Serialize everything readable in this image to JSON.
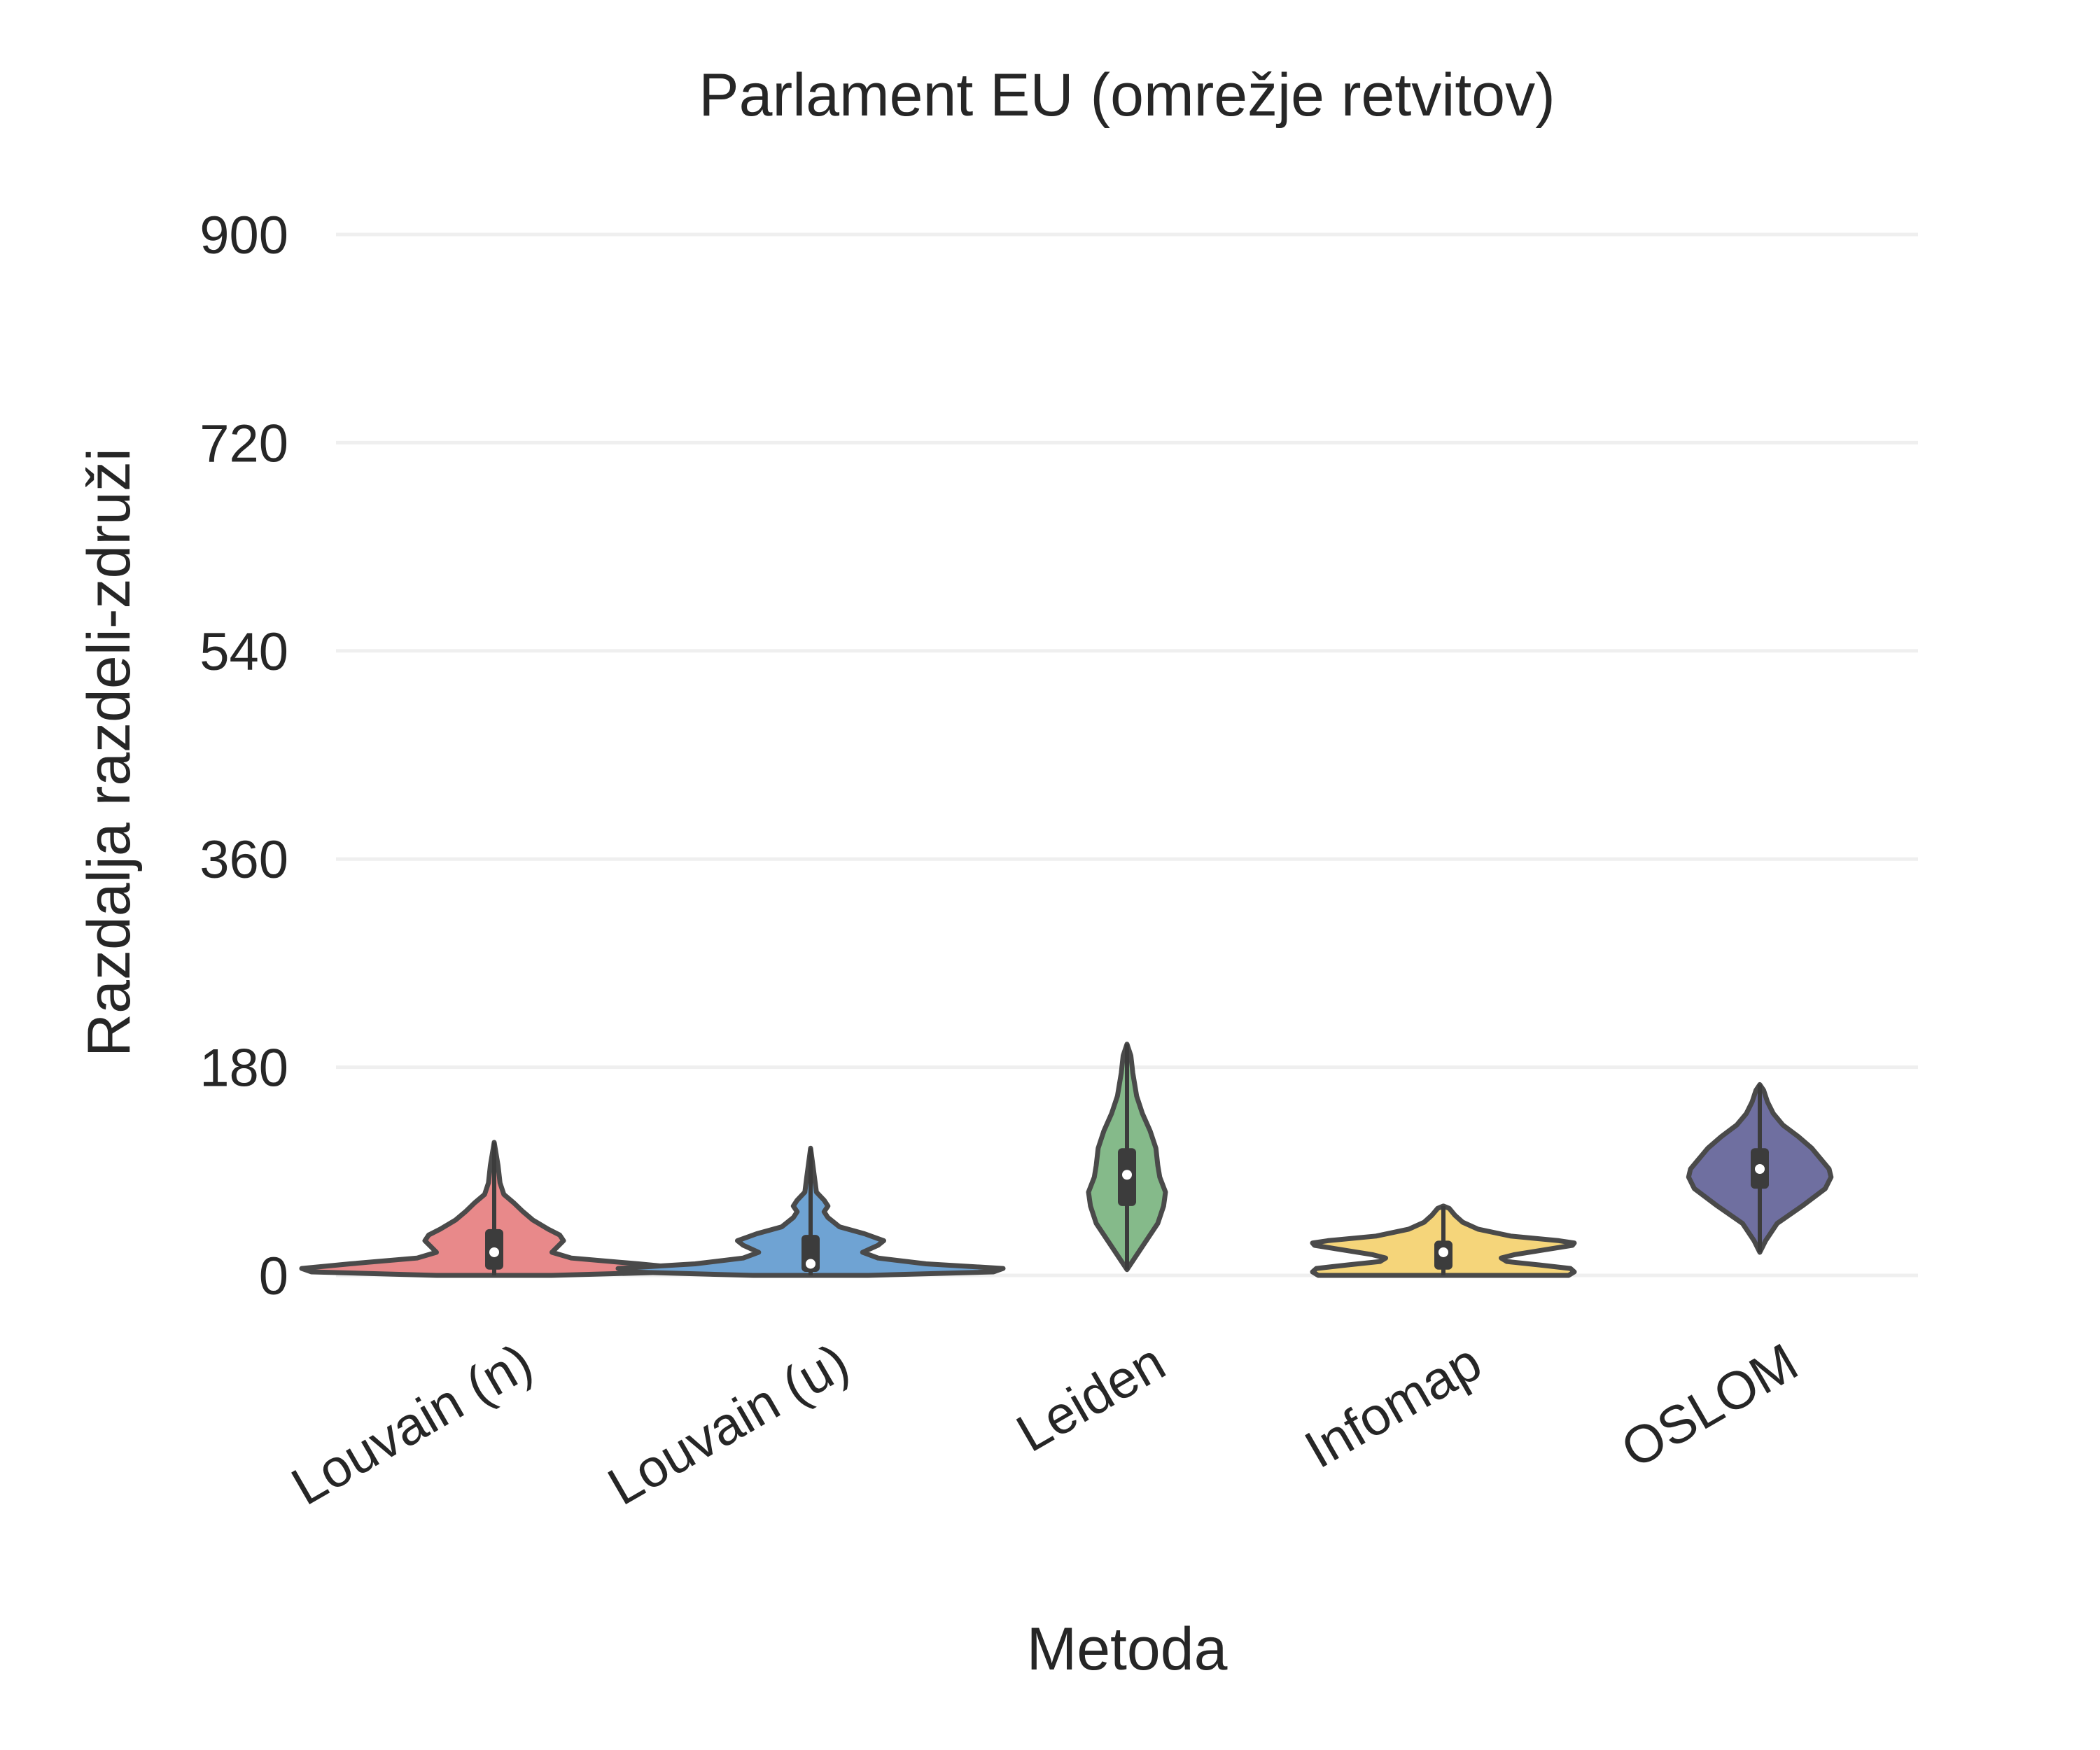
{
  "chart_data": {
    "type": "violin",
    "title": "Parlament EU  (omrežje retvitov)",
    "xlabel": "Metoda",
    "ylabel": "Razdalja razdeli-združi",
    "ylim": [
      -40,
      900
    ],
    "yticks": [
      0,
      180,
      360,
      540,
      720,
      900
    ],
    "grid": true,
    "categories": [
      "Louvain (n)",
      "Louvain (u)",
      "Leiden",
      "Infomap",
      "OSLOM"
    ],
    "colors": [
      "#e8898a",
      "#6fa3d3",
      "#85ba8a",
      "#f5d57a",
      "#6f6fa0"
    ],
    "series": [
      {
        "min": 0,
        "max": 115,
        "q1": 5,
        "median": 20,
        "q3": 40,
        "density": [
          [
            0,
            0.3
          ],
          [
            3,
            0.95
          ],
          [
            6,
            1.0
          ],
          [
            10,
            0.75
          ],
          [
            15,
            0.4
          ],
          [
            20,
            0.3
          ],
          [
            25,
            0.33
          ],
          [
            30,
            0.36
          ],
          [
            35,
            0.34
          ],
          [
            40,
            0.28
          ],
          [
            48,
            0.2
          ],
          [
            55,
            0.15
          ],
          [
            63,
            0.1
          ],
          [
            70,
            0.05
          ],
          [
            80,
            0.03
          ],
          [
            95,
            0.02
          ],
          [
            115,
            0
          ]
        ]
      },
      {
        "min": 0,
        "max": 110,
        "q1": 3,
        "median": 10,
        "q3": 35,
        "density": [
          [
            0,
            0.3
          ],
          [
            3,
            0.95
          ],
          [
            6,
            1.0
          ],
          [
            10,
            0.6
          ],
          [
            15,
            0.35
          ],
          [
            20,
            0.27
          ],
          [
            26,
            0.35
          ],
          [
            30,
            0.38
          ],
          [
            36,
            0.28
          ],
          [
            42,
            0.15
          ],
          [
            50,
            0.09
          ],
          [
            55,
            0.07
          ],
          [
            60,
            0.09
          ],
          [
            65,
            0.07
          ],
          [
            72,
            0.03
          ],
          [
            85,
            0.02
          ],
          [
            110,
            0
          ]
        ]
      },
      {
        "min": 5,
        "max": 200,
        "q1": 60,
        "median": 87,
        "q3": 110,
        "density": [
          [
            5,
            0
          ],
          [
            15,
            0.04
          ],
          [
            30,
            0.1
          ],
          [
            45,
            0.16
          ],
          [
            60,
            0.19
          ],
          [
            72,
            0.2
          ],
          [
            85,
            0.17
          ],
          [
            95,
            0.16
          ],
          [
            110,
            0.15
          ],
          [
            125,
            0.12
          ],
          [
            140,
            0.08
          ],
          [
            155,
            0.05
          ],
          [
            175,
            0.03
          ],
          [
            190,
            0.02
          ],
          [
            200,
            0
          ]
        ]
      },
      {
        "min": 0,
        "max": 60,
        "q1": 5,
        "median": 20,
        "q3": 30,
        "density": [
          [
            0,
            0.65
          ],
          [
            3,
            0.68
          ],
          [
            6,
            0.66
          ],
          [
            9,
            0.5
          ],
          [
            12,
            0.33
          ],
          [
            15,
            0.3
          ],
          [
            18,
            0.37
          ],
          [
            22,
            0.52
          ],
          [
            26,
            0.67
          ],
          [
            28,
            0.68
          ],
          [
            30,
            0.6
          ],
          [
            34,
            0.35
          ],
          [
            40,
            0.18
          ],
          [
            46,
            0.1
          ],
          [
            52,
            0.06
          ],
          [
            58,
            0.03
          ],
          [
            60,
            0
          ]
        ]
      },
      {
        "min": 20,
        "max": 165,
        "q1": 75,
        "median": 92,
        "q3": 110,
        "density": [
          [
            20,
            0
          ],
          [
            30,
            0.03
          ],
          [
            45,
            0.09
          ],
          [
            60,
            0.22
          ],
          [
            75,
            0.34
          ],
          [
            85,
            0.37
          ],
          [
            92,
            0.36
          ],
          [
            100,
            0.32
          ],
          [
            110,
            0.27
          ],
          [
            120,
            0.2
          ],
          [
            130,
            0.12
          ],
          [
            140,
            0.07
          ],
          [
            150,
            0.04
          ],
          [
            160,
            0.02
          ],
          [
            165,
            0
          ]
        ]
      }
    ]
  }
}
